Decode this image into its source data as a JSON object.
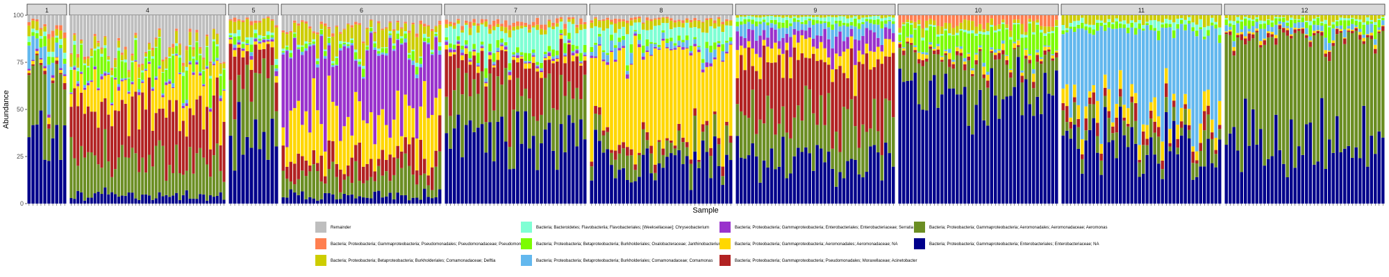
{
  "chart_data": {
    "type": "bar",
    "stacked": true,
    "xlabel": "Sample",
    "ylabel": "Abundance",
    "ylim": [
      0,
      100
    ],
    "y_ticks": [
      0,
      25,
      50,
      75,
      100
    ],
    "grid": false,
    "legend_position": "bottom",
    "facets": [
      {
        "label": "1",
        "samples": 10
      },
      {
        "label": "4",
        "samples": 46
      },
      {
        "label": "5",
        "samples": 12
      },
      {
        "label": "6",
        "samples": 42
      },
      {
        "label": "7",
        "samples": 36
      },
      {
        "label": "8",
        "samples": 36
      },
      {
        "label": "9",
        "samples": 42
      },
      {
        "label": "10",
        "samples": 42
      },
      {
        "label": "11",
        "samples": 42
      },
      {
        "label": "12",
        "samples": 42
      }
    ],
    "series": [
      {
        "name": "Bacteria; Proteobacteria; Gammaproteobacteria; Enterobacteriales; Enterobacteriaceae; NA",
        "color": "#00008B"
      },
      {
        "name": "Bacteria; Proteobacteria; Gammaproteobacteria; Aeromonadales; Aeromonadaceae; Aeromonas",
        "color": "#6B8E23"
      },
      {
        "name": "Bacteria; Proteobacteria; Gammaproteobacteria; Pseudomonadales; Moraxellaceae; Acinetobacter",
        "color": "#B22222"
      },
      {
        "name": "Bacteria; Proteobacteria; Gammaproteobacteria; Aeromonadales; Aeromonadaceae; NA",
        "color": "#FFD700"
      },
      {
        "name": "Bacteria; Proteobacteria; Gammaproteobacteria; Enterobacteriales; Enterobacteriaceae; Serratia",
        "color": "#9932CC"
      },
      {
        "name": "Bacteria; Proteobacteria; Betaproteobacteria; Burkholderiales; Comamonadaceae; Comamonas",
        "color": "#63B8EE"
      },
      {
        "name": "Bacteria; Proteobacteria; Betaproteobacteria; Burkholderiales; Oxalobacteraceae; Janthinobacterium",
        "color": "#7CFC00"
      },
      {
        "name": "Bacteria; Bacteroidetes; Flavobacteriia; Flavobacteriales; [Weeksellaceae]; Chryseobacterium",
        "color": "#7FFFD4"
      },
      {
        "name": "Bacteria; Proteobacteria; Betaproteobacteria; Burkholderiales; Comamonadaceae; Delftia",
        "color": "#CDCD00"
      },
      {
        "name": "Bacteria; Proteobacteria; Gammaproteobacteria; Pseudomonadales; Pseudomonadaceae; Pseudomonas",
        "color": "#FF7F50"
      },
      {
        "name": "Remainder",
        "color": "#BEBEBE"
      }
    ],
    "group_means": [
      {
        "label": "1",
        "values": [
          35,
          30,
          2,
          2,
          1,
          12,
          4,
          2,
          5,
          2,
          5
        ]
      },
      {
        "label": "4",
        "values": [
          4,
          20,
          25,
          15,
          1,
          1,
          10,
          1,
          4,
          1,
          18
        ]
      },
      {
        "label": "5",
        "values": [
          35,
          30,
          15,
          3,
          1,
          1,
          2,
          2,
          8,
          1,
          2
        ]
      },
      {
        "label": "6",
        "values": [
          4,
          10,
          10,
          22,
          35,
          1,
          2,
          1,
          8,
          1,
          6
        ]
      },
      {
        "label": "7",
        "values": [
          36,
          22,
          18,
          2,
          1,
          1,
          3,
          10,
          2,
          2,
          3
        ]
      },
      {
        "label": "8",
        "values": [
          22,
          10,
          3,
          45,
          1,
          3,
          2,
          8,
          3,
          1,
          2
        ]
      },
      {
        "label": "9",
        "values": [
          22,
          22,
          30,
          8,
          8,
          5,
          2,
          2,
          1,
          0,
          0
        ]
      },
      {
        "label": "10",
        "values": [
          58,
          18,
          2,
          2,
          0,
          1,
          10,
          1,
          3,
          5,
          0
        ]
      },
      {
        "label": "11",
        "values": [
          30,
          8,
          4,
          6,
          0,
          45,
          2,
          2,
          3,
          0,
          0
        ]
      },
      {
        "label": "12",
        "values": [
          30,
          58,
          2,
          1,
          0,
          3,
          3,
          1,
          2,
          0,
          0
        ]
      }
    ]
  }
}
